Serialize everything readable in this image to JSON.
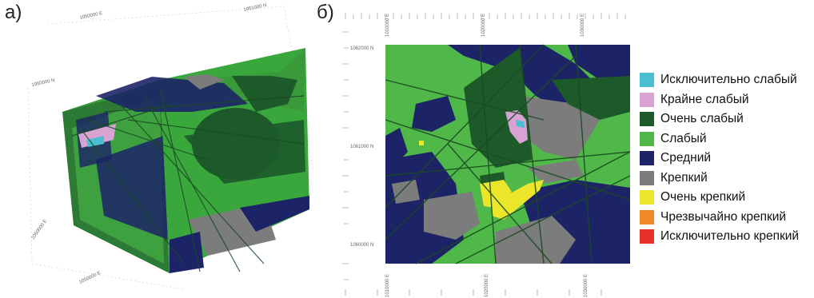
{
  "panels": {
    "a": {
      "label": "а)",
      "coord_labels": [
        "1050000 E",
        "1051000 N",
        "1050000 N",
        "1050000 E",
        "1050000 E"
      ]
    },
    "b": {
      "label": "б)",
      "top_ticks": [
        "1010000 E",
        "1020000 E",
        "1030000 E"
      ],
      "left_ticks": [
        "1062000 N",
        "1061000 N",
        "1060000 N"
      ],
      "bottom_ticks": [
        "1010000 E",
        "1020000 E",
        "1030000 E"
      ]
    }
  },
  "legend": {
    "items": [
      {
        "label": "Исключительно слабый",
        "color": "#4bbfd2"
      },
      {
        "label": "Крайне слабый",
        "color": "#d8a3d3"
      },
      {
        "label": "Очень слабый",
        "color": "#1d5a2a"
      },
      {
        "label": "Слабый",
        "color": "#4fb848"
      },
      {
        "label": "Средний",
        "color": "#1c2367"
      },
      {
        "label": "Крепкий",
        "color": "#7c7c7c"
      },
      {
        "label": "Очень крепкий",
        "color": "#ece62a"
      },
      {
        "label": "Чрезвычайно крепкий",
        "color": "#f0882a"
      },
      {
        "label": "Исключительно крепкий",
        "color": "#e8312a"
      }
    ]
  }
}
